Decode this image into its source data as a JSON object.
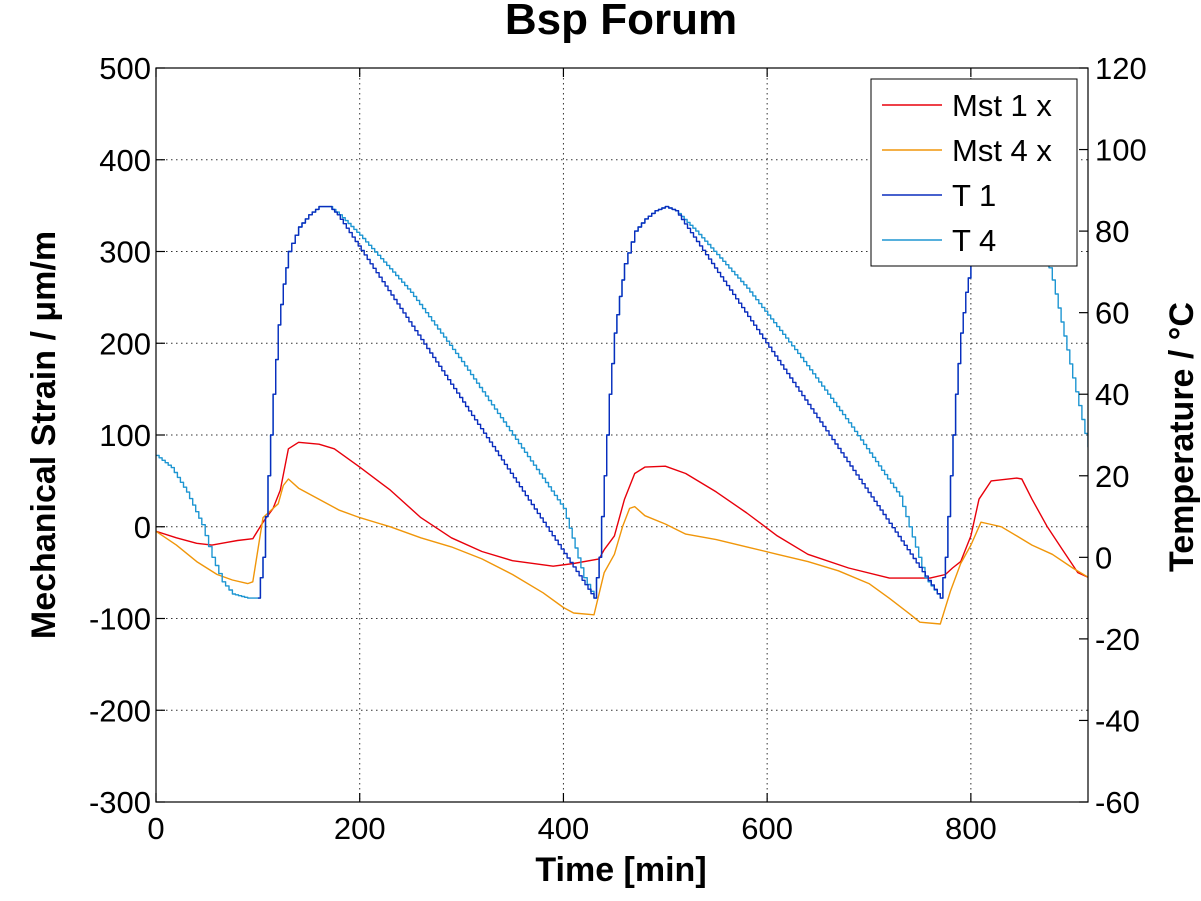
{
  "chart_data": {
    "type": "line",
    "title": "Bsp Forum",
    "xlabel": "Time [min]",
    "ylabel": "Mechanical Strain / μm/m",
    "y2label": "Temperature / °C",
    "xlim": [
      0,
      915
    ],
    "ylim": [
      -300,
      500
    ],
    "y2lim": [
      -60,
      120
    ],
    "xticks": [
      0,
      200,
      400,
      600,
      800
    ],
    "yticks": [
      -300,
      -200,
      -100,
      0,
      100,
      200,
      300,
      400,
      500
    ],
    "y2ticks": [
      -60,
      -40,
      -20,
      0,
      20,
      40,
      60,
      80,
      100,
      120
    ],
    "grid": true,
    "legend_position": "top-right",
    "series": [
      {
        "name": "Mst 1 x",
        "color": "#e8000b",
        "axis": "left",
        "points": [
          [
            0,
            -5
          ],
          [
            20,
            -12
          ],
          [
            40,
            -18
          ],
          [
            55,
            -20
          ],
          [
            70,
            -17
          ],
          [
            80,
            -15
          ],
          [
            95,
            -13
          ],
          [
            105,
            5
          ],
          [
            115,
            20
          ],
          [
            122,
            40
          ],
          [
            130,
            85
          ],
          [
            140,
            92
          ],
          [
            160,
            90
          ],
          [
            175,
            85
          ],
          [
            200,
            65
          ],
          [
            230,
            40
          ],
          [
            260,
            10
          ],
          [
            290,
            -12
          ],
          [
            320,
            -27
          ],
          [
            350,
            -37
          ],
          [
            390,
            -43
          ],
          [
            410,
            -40
          ],
          [
            435,
            -35
          ],
          [
            440,
            -25
          ],
          [
            450,
            -10
          ],
          [
            460,
            30
          ],
          [
            470,
            58
          ],
          [
            480,
            65
          ],
          [
            500,
            66
          ],
          [
            520,
            58
          ],
          [
            550,
            38
          ],
          [
            580,
            15
          ],
          [
            610,
            -10
          ],
          [
            640,
            -30
          ],
          [
            680,
            -45
          ],
          [
            720,
            -56
          ],
          [
            760,
            -56
          ],
          [
            775,
            -52
          ],
          [
            782,
            -45
          ],
          [
            790,
            -38
          ],
          [
            800,
            -10
          ],
          [
            808,
            30
          ],
          [
            820,
            50
          ],
          [
            845,
            53
          ],
          [
            850,
            52
          ],
          [
            860,
            30
          ],
          [
            875,
            0
          ],
          [
            890,
            -25
          ],
          [
            905,
            -50
          ],
          [
            915,
            -55
          ]
        ]
      },
      {
        "name": "Mst 4 x",
        "color": "#f0960a",
        "axis": "left",
        "points": [
          [
            0,
            -5
          ],
          [
            20,
            -20
          ],
          [
            40,
            -38
          ],
          [
            60,
            -52
          ],
          [
            75,
            -58
          ],
          [
            90,
            -62
          ],
          [
            95,
            -60
          ],
          [
            105,
            10
          ],
          [
            115,
            20
          ],
          [
            120,
            25
          ],
          [
            125,
            45
          ],
          [
            130,
            52
          ],
          [
            140,
            42
          ],
          [
            160,
            30
          ],
          [
            180,
            18
          ],
          [
            200,
            10
          ],
          [
            230,
            0
          ],
          [
            260,
            -12
          ],
          [
            290,
            -22
          ],
          [
            320,
            -35
          ],
          [
            350,
            -52
          ],
          [
            380,
            -72
          ],
          [
            400,
            -88
          ],
          [
            410,
            -94
          ],
          [
            430,
            -96
          ],
          [
            440,
            -50
          ],
          [
            450,
            -30
          ],
          [
            458,
            0
          ],
          [
            465,
            20
          ],
          [
            470,
            22
          ],
          [
            480,
            12
          ],
          [
            500,
            3
          ],
          [
            520,
            -8
          ],
          [
            550,
            -14
          ],
          [
            580,
            -22
          ],
          [
            610,
            -30
          ],
          [
            640,
            -38
          ],
          [
            670,
            -48
          ],
          [
            700,
            -62
          ],
          [
            720,
            -78
          ],
          [
            740,
            -95
          ],
          [
            750,
            -104
          ],
          [
            770,
            -106
          ],
          [
            780,
            -70
          ],
          [
            790,
            -40
          ],
          [
            800,
            -20
          ],
          [
            810,
            5
          ],
          [
            818,
            3
          ],
          [
            830,
            0
          ],
          [
            845,
            -10
          ],
          [
            860,
            -20
          ],
          [
            880,
            -30
          ],
          [
            900,
            -45
          ],
          [
            915,
            -55
          ]
        ]
      },
      {
        "name": "T 1",
        "color": "#0a2dbe",
        "axis": "right",
        "step": true,
        "points": [
          [
            100,
            -10
          ],
          [
            105,
            0
          ],
          [
            110,
            20
          ],
          [
            115,
            40
          ],
          [
            120,
            57
          ],
          [
            125,
            67
          ],
          [
            130,
            75
          ],
          [
            140,
            81
          ],
          [
            150,
            84
          ],
          [
            160,
            86
          ],
          [
            170,
            86
          ],
          [
            178,
            84
          ],
          [
            430,
            -10
          ],
          [
            435,
            0
          ],
          [
            440,
            20
          ],
          [
            445,
            40
          ],
          [
            450,
            55
          ],
          [
            455,
            64
          ],
          [
            460,
            72
          ],
          [
            470,
            80
          ],
          [
            480,
            83
          ],
          [
            490,
            85
          ],
          [
            500,
            86
          ],
          [
            510,
            85
          ],
          [
            770,
            -10
          ],
          [
            775,
            0
          ],
          [
            780,
            20
          ],
          [
            785,
            40
          ],
          [
            790,
            55
          ],
          [
            795,
            65
          ],
          [
            800,
            72
          ]
        ]
      },
      {
        "name": "T 4",
        "color": "#1e96d2",
        "axis": "right",
        "step": true,
        "points": [
          [
            0,
            25
          ],
          [
            15,
            22
          ],
          [
            30,
            16
          ],
          [
            45,
            8
          ],
          [
            55,
            0
          ],
          [
            65,
            -6
          ],
          [
            75,
            -9
          ],
          [
            90,
            -10
          ],
          [
            100,
            -10
          ],
          [
            105,
            0
          ],
          [
            110,
            20
          ],
          [
            115,
            40
          ],
          [
            120,
            57
          ],
          [
            125,
            67
          ],
          [
            130,
            75
          ],
          [
            140,
            81
          ],
          [
            150,
            84
          ],
          [
            160,
            86
          ],
          [
            170,
            86
          ],
          [
            180,
            84
          ],
          [
            200,
            79
          ],
          [
            250,
            65
          ],
          [
            300,
            48
          ],
          [
            350,
            30
          ],
          [
            400,
            12
          ],
          [
            420,
            -5
          ],
          [
            430,
            -10
          ],
          [
            435,
            0
          ],
          [
            440,
            20
          ],
          [
            445,
            40
          ],
          [
            450,
            55
          ],
          [
            455,
            64
          ],
          [
            460,
            72
          ],
          [
            470,
            80
          ],
          [
            480,
            83
          ],
          [
            490,
            85
          ],
          [
            500,
            86
          ],
          [
            510,
            85
          ],
          [
            530,
            80
          ],
          [
            580,
            66
          ],
          [
            630,
            50
          ],
          [
            680,
            33
          ],
          [
            730,
            15
          ],
          [
            755,
            -5
          ],
          [
            770,
            -10
          ],
          [
            775,
            0
          ],
          [
            780,
            20
          ],
          [
            785,
            40
          ],
          [
            790,
            55
          ],
          [
            795,
            65
          ],
          [
            800,
            72
          ],
          [
            870,
            77
          ],
          [
            880,
            68
          ],
          [
            900,
            44
          ],
          [
            915,
            27
          ]
        ]
      }
    ]
  }
}
